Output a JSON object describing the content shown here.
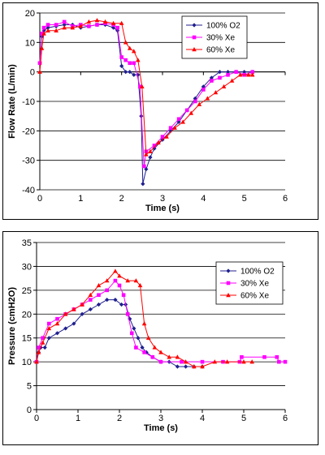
{
  "chart_data": [
    {
      "type": "line",
      "xlabel": "Time (s)",
      "ylabel": "Flow Rate (L/min)",
      "xlim": [
        0,
        6
      ],
      "ylim": [
        -40,
        20
      ],
      "xticks": [
        "0",
        "1",
        "2",
        "3",
        "4",
        "5",
        "6"
      ],
      "yticks": [
        "-40",
        "-30",
        "-20",
        "-10",
        "0",
        "10",
        "20"
      ],
      "grid": "horizontal",
      "legend_position": "top-right",
      "series": [
        {
          "name": "100% O2",
          "color": "#1f1f8f",
          "marker": "diamond",
          "points": [
            [
              0,
              3
            ],
            [
              0.05,
              12
            ],
            [
              0.1,
              14
            ],
            [
              0.2,
              15
            ],
            [
              0.4,
              15.5
            ],
            [
              0.6,
              16
            ],
            [
              0.8,
              16
            ],
            [
              1.0,
              15
            ],
            [
              1.2,
              15.5
            ],
            [
              1.4,
              16
            ],
            [
              1.6,
              16
            ],
            [
              1.8,
              15
            ],
            [
              1.9,
              14
            ],
            [
              2.0,
              2
            ],
            [
              2.1,
              0
            ],
            [
              2.2,
              0
            ],
            [
              2.3,
              -1
            ],
            [
              2.4,
              -1
            ],
            [
              2.48,
              -15
            ],
            [
              2.52,
              -38
            ],
            [
              2.6,
              -33
            ],
            [
              2.7,
              -29
            ],
            [
              2.8,
              -26
            ],
            [
              3.0,
              -23
            ],
            [
              3.2,
              -20
            ],
            [
              3.4,
              -17
            ],
            [
              3.6,
              -13
            ],
            [
              3.8,
              -9
            ],
            [
              4.0,
              -5
            ],
            [
              4.2,
              -2
            ],
            [
              4.4,
              0
            ],
            [
              4.6,
              0
            ],
            [
              4.8,
              0
            ],
            [
              5.0,
              0
            ],
            [
              5.2,
              0
            ]
          ]
        },
        {
          "name": "30% Xe",
          "color": "#ff00ff",
          "marker": "square",
          "points": [
            [
              0,
              3
            ],
            [
              0.05,
              13
            ],
            [
              0.1,
              15
            ],
            [
              0.2,
              16
            ],
            [
              0.4,
              16
            ],
            [
              0.6,
              17
            ],
            [
              0.8,
              15.5
            ],
            [
              1.0,
              16
            ],
            [
              1.2,
              15.5
            ],
            [
              1.4,
              16
            ],
            [
              1.6,
              16.5
            ],
            [
              1.8,
              16
            ],
            [
              1.9,
              15
            ],
            [
              2.0,
              5
            ],
            [
              2.1,
              4
            ],
            [
              2.2,
              3
            ],
            [
              2.3,
              3
            ],
            [
              2.45,
              -5
            ],
            [
              2.55,
              -32
            ],
            [
              2.6,
              -27
            ],
            [
              2.8,
              -25
            ],
            [
              3.0,
              -22
            ],
            [
              3.2,
              -19
            ],
            [
              3.4,
              -16
            ],
            [
              3.6,
              -13
            ],
            [
              3.8,
              -10
            ],
            [
              4.0,
              -6
            ],
            [
              4.2,
              -3
            ],
            [
              4.4,
              -2
            ],
            [
              4.6,
              -1
            ],
            [
              4.8,
              0
            ],
            [
              5.0,
              -1
            ],
            [
              5.2,
              0
            ]
          ]
        },
        {
          "name": "60% Xe",
          "color": "#ff0000",
          "marker": "triangle",
          "points": [
            [
              0,
              0
            ],
            [
              0.05,
              8
            ],
            [
              0.1,
              13
            ],
            [
              0.2,
              14
            ],
            [
              0.4,
              14
            ],
            [
              0.6,
              15
            ],
            [
              0.8,
              15
            ],
            [
              1.0,
              15.5
            ],
            [
              1.2,
              17
            ],
            [
              1.4,
              17.5
            ],
            [
              1.6,
              17
            ],
            [
              1.8,
              16.5
            ],
            [
              2.0,
              16.5
            ],
            [
              2.1,
              10
            ],
            [
              2.2,
              8
            ],
            [
              2.3,
              7
            ],
            [
              2.4,
              4
            ],
            [
              2.5,
              -5
            ],
            [
              2.6,
              -28
            ],
            [
              2.7,
              -27
            ],
            [
              2.9,
              -24
            ],
            [
              3.1,
              -22
            ],
            [
              3.3,
              -19
            ],
            [
              3.5,
              -17
            ],
            [
              3.7,
              -14
            ],
            [
              3.9,
              -11
            ],
            [
              4.1,
              -9
            ],
            [
              4.3,
              -7
            ],
            [
              4.5,
              -5
            ],
            [
              4.7,
              -3
            ],
            [
              4.9,
              -1
            ],
            [
              5.1,
              -1
            ],
            [
              5.2,
              -1
            ]
          ]
        }
      ]
    },
    {
      "type": "line",
      "xlabel": "Time (s)",
      "ylabel": "Pressure (cmH2O)",
      "xlim": [
        0,
        6
      ],
      "ylim": [
        0,
        35
      ],
      "xticks": [
        "0",
        "1",
        "2",
        "3",
        "4",
        "5",
        "6"
      ],
      "yticks": [
        "0",
        "5",
        "10",
        "15",
        "20",
        "25",
        "30",
        "35"
      ],
      "grid": "horizontal",
      "legend_position": "top-right",
      "series": [
        {
          "name": "100% O2",
          "color": "#1f1f8f",
          "marker": "diamond",
          "points": [
            [
              0,
              10
            ],
            [
              0.05,
              12
            ],
            [
              0.1,
              13
            ],
            [
              0.2,
              13
            ],
            [
              0.3,
              15
            ],
            [
              0.5,
              16
            ],
            [
              0.7,
              17
            ],
            [
              0.9,
              18
            ],
            [
              1.1,
              20
            ],
            [
              1.3,
              21
            ],
            [
              1.5,
              22
            ],
            [
              1.7,
              23
            ],
            [
              1.9,
              23
            ],
            [
              2.05,
              22
            ],
            [
              2.15,
              22
            ],
            [
              2.25,
              19
            ],
            [
              2.35,
              17
            ],
            [
              2.45,
              15
            ],
            [
              2.55,
              13
            ],
            [
              2.65,
              12
            ],
            [
              2.8,
              11
            ],
            [
              3.0,
              10
            ],
            [
              3.2,
              10
            ],
            [
              3.4,
              9
            ],
            [
              3.6,
              9
            ],
            [
              3.8,
              9
            ],
            [
              4.0,
              9
            ]
          ]
        },
        {
          "name": "30% Xe",
          "color": "#ff00ff",
          "marker": "square",
          "points": [
            [
              0,
              10
            ],
            [
              0.05,
              13
            ],
            [
              0.15,
              15
            ],
            [
              0.3,
              18
            ],
            [
              0.5,
              19
            ],
            [
              0.7,
              20
            ],
            [
              0.9,
              21
            ],
            [
              1.1,
              22
            ],
            [
              1.3,
              23
            ],
            [
              1.5,
              24
            ],
            [
              1.7,
              25
            ],
            [
              1.9,
              27
            ],
            [
              2.0,
              26
            ],
            [
              2.1,
              24
            ],
            [
              2.2,
              20
            ],
            [
              2.3,
              16
            ],
            [
              2.4,
              13
            ],
            [
              2.6,
              12
            ],
            [
              2.8,
              11
            ],
            [
              3.0,
              10
            ],
            [
              3.5,
              10
            ],
            [
              4.0,
              10
            ],
            [
              4.5,
              10
            ],
            [
              4.9,
              10
            ],
            [
              4.95,
              11
            ],
            [
              5.5,
              11
            ],
            [
              5.8,
              11
            ],
            [
              5.85,
              10
            ],
            [
              6.0,
              10
            ]
          ]
        },
        {
          "name": "60% Xe",
          "color": "#ff0000",
          "marker": "triangle",
          "points": [
            [
              0,
              10
            ],
            [
              0.05,
              12
            ],
            [
              0.15,
              14
            ],
            [
              0.3,
              17
            ],
            [
              0.5,
              18
            ],
            [
              0.7,
              20
            ],
            [
              0.9,
              21
            ],
            [
              1.1,
              22
            ],
            [
              1.3,
              24
            ],
            [
              1.5,
              26
            ],
            [
              1.7,
              27
            ],
            [
              1.9,
              29
            ],
            [
              2.0,
              28
            ],
            [
              2.2,
              27
            ],
            [
              2.4,
              27
            ],
            [
              2.5,
              26
            ],
            [
              2.6,
              18
            ],
            [
              2.7,
              15
            ],
            [
              2.85,
              13
            ],
            [
              3.0,
              12
            ],
            [
              3.2,
              11
            ],
            [
              3.4,
              11
            ],
            [
              3.6,
              10
            ],
            [
              3.8,
              9
            ],
            [
              4.0,
              9
            ],
            [
              4.3,
              10
            ],
            [
              4.6,
              10
            ],
            [
              5.0,
              10
            ],
            [
              5.2,
              10
            ]
          ]
        }
      ]
    }
  ]
}
